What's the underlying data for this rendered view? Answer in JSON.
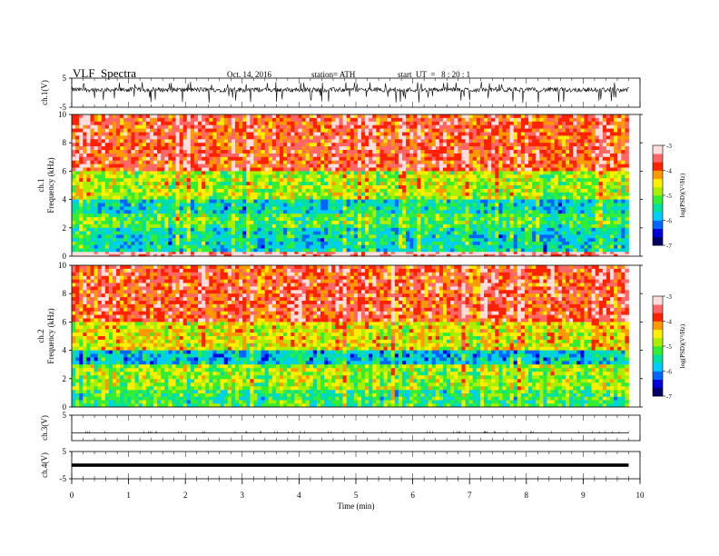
{
  "header": {
    "title": "VLF  Spectra",
    "date": "Oct. 14, 2016",
    "station": "station= ATH",
    "start_ut": "start  UT  =   8 : 20 : 1"
  },
  "colors": {
    "line": "#000000",
    "colormap": [
      "#000066",
      "#0000dd",
      "#0066ff",
      "#00ccff",
      "#00e0a0",
      "#33ee33",
      "#aaee00",
      "#ffee00",
      "#ff9900",
      "#ff2200",
      "#ff6666",
      "#ffdddd"
    ]
  },
  "chart_data": [
    {
      "type": "line",
      "panel": "ch1-waveform",
      "ylabel": "ch.1(V)",
      "ylim": [
        -5,
        5
      ],
      "yticks": [
        "5",
        "-5"
      ],
      "xlim": [
        0,
        10
      ],
      "signal": "noisy waveform centred near 1 V, spikes to about -3 V"
    },
    {
      "type": "heatmap",
      "panel": "ch1-spectrogram",
      "ylabel_channel": "ch.1",
      "ylabel": "Frequency  (kHz)",
      "ylim": [
        0,
        10
      ],
      "yticks": [
        "0",
        "2",
        "4",
        "6",
        "8",
        "10"
      ],
      "xlim": [
        0,
        10
      ],
      "data_end_min": 9.8,
      "colorbar": {
        "label": "log(PSD)(V²/Hz)",
        "range": [
          -7,
          -3
        ],
        "ticks": [
          "-3",
          "-4",
          "-5",
          "-6",
          "-7"
        ]
      },
      "bands": [
        {
          "freq_range_khz": [
            6,
            10
          ],
          "log_psd": -3.8
        },
        {
          "freq_range_khz": [
            4,
            6
          ],
          "log_psd": -4.8
        },
        {
          "freq_range_khz": [
            3,
            4
          ],
          "log_psd": -5.6
        },
        {
          "freq_range_khz": [
            2,
            3
          ],
          "log_psd": -5.2
        },
        {
          "freq_range_khz": [
            0.3,
            2
          ],
          "log_psd": -5.6
        },
        {
          "freq_range_khz": [
            0,
            0.3
          ],
          "log_psd": -3.2
        }
      ]
    },
    {
      "type": "heatmap",
      "panel": "ch2-spectrogram",
      "ylabel_channel": "ch.2",
      "ylabel": "Frequency  (kHz)",
      "ylim": [
        0,
        10
      ],
      "yticks": [
        "0",
        "2",
        "4",
        "6",
        "8",
        "10"
      ],
      "xlim": [
        0,
        10
      ],
      "data_end_min": 9.8,
      "colorbar": {
        "label": "log(PSD)(V²/Hz)",
        "range": [
          -7,
          -3
        ],
        "ticks": [
          "-3",
          "-4",
          "-5",
          "-6",
          "-7"
        ]
      },
      "bands": [
        {
          "freq_range_khz": [
            6,
            10
          ],
          "log_psd": -3.8
        },
        {
          "freq_range_khz": [
            4,
            6
          ],
          "log_psd": -4.6
        },
        {
          "freq_range_khz": [
            3,
            4
          ],
          "log_psd": -5.8
        },
        {
          "freq_range_khz": [
            1.2,
            3
          ],
          "log_psd": -4.9
        },
        {
          "freq_range_khz": [
            0,
            1.2
          ],
          "log_psd": -5.3
        }
      ]
    },
    {
      "type": "line",
      "panel": "ch3-waveform",
      "ylabel": "ch.3(V)",
      "ylim": [
        -5,
        5
      ],
      "yticks": [
        "5"
      ],
      "xlim": [
        0,
        10
      ],
      "signal": "flat trace near -2 V"
    },
    {
      "type": "line",
      "panel": "ch4-waveform",
      "ylabel": "ch.4(V)",
      "ylim": [
        -5,
        5
      ],
      "yticks": [
        "5",
        "-5"
      ],
      "xlim": [
        0,
        10
      ],
      "signal": "saturated flat band near 0 V"
    }
  ],
  "x_axis": {
    "label": "Time  (min)",
    "ticks": [
      "0",
      "1",
      "2",
      "3",
      "4",
      "5",
      "6",
      "7",
      "8",
      "9",
      "10"
    ]
  }
}
